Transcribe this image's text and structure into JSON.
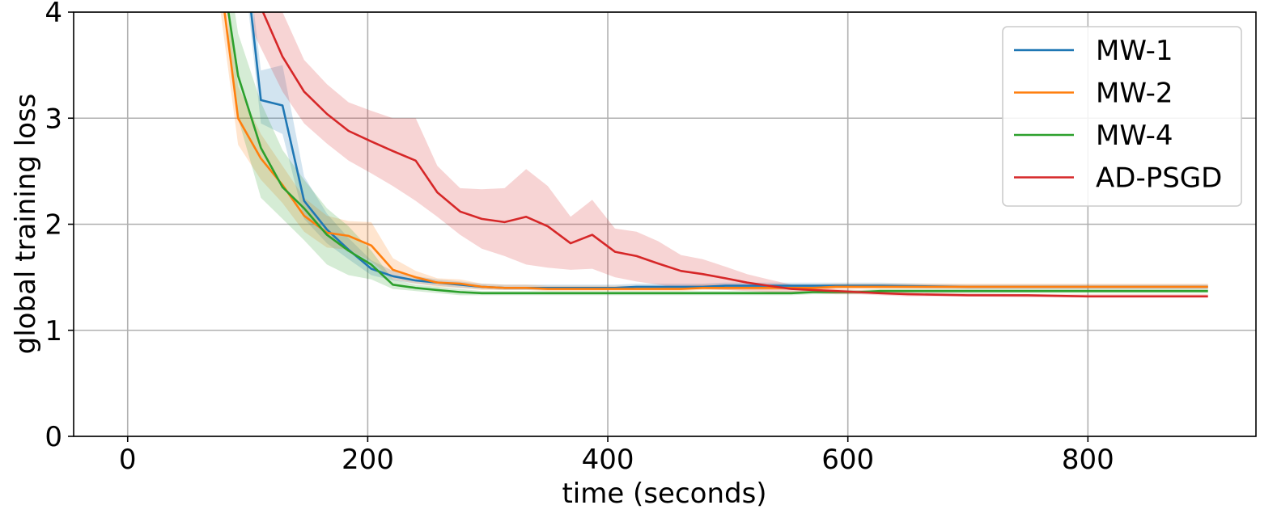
{
  "chart_data": {
    "type": "line",
    "title": "",
    "xlabel": "time (seconds)",
    "ylabel": "global training loss",
    "xlim": [
      -45,
      940
    ],
    "ylim": [
      0,
      4
    ],
    "xticks": [
      0,
      200,
      400,
      600,
      800
    ],
    "yticks": [
      0,
      1,
      2,
      3,
      4
    ],
    "grid": true,
    "legend_position": "top-right",
    "series": [
      {
        "name": "MW-1",
        "color": "#1f77b4",
        "x": [
          97,
          111,
          129,
          147,
          166,
          184,
          203,
          221,
          240,
          258,
          277,
          295,
          314,
          332,
          350,
          369,
          387,
          406,
          424,
          442,
          461,
          479,
          498,
          516,
          534,
          553,
          571,
          590,
          608,
          627,
          700,
          800,
          900
        ],
        "y": [
          4.6,
          3.17,
          3.12,
          2.22,
          1.95,
          1.76,
          1.58,
          1.51,
          1.47,
          1.45,
          1.43,
          1.41,
          1.4,
          1.4,
          1.4,
          1.4,
          1.4,
          1.4,
          1.41,
          1.41,
          1.41,
          1.41,
          1.42,
          1.42,
          1.42,
          1.42,
          1.42,
          1.42,
          1.42,
          1.42,
          1.41,
          1.41,
          1.41
        ],
        "lower": [
          4.4,
          2.95,
          2.85,
          2.05,
          1.82,
          1.67,
          1.52,
          1.47,
          1.44,
          1.42,
          1.4,
          1.39,
          1.38,
          1.38,
          1.38,
          1.38,
          1.38,
          1.38,
          1.39,
          1.39,
          1.39,
          1.39,
          1.4,
          1.4,
          1.4,
          1.4,
          1.4,
          1.4,
          1.4,
          1.4,
          1.39,
          1.39,
          1.39
        ],
        "upper": [
          4.8,
          3.45,
          3.5,
          2.45,
          2.1,
          1.87,
          1.66,
          1.56,
          1.51,
          1.48,
          1.46,
          1.44,
          1.43,
          1.43,
          1.43,
          1.43,
          1.43,
          1.43,
          1.44,
          1.44,
          1.44,
          1.44,
          1.45,
          1.45,
          1.45,
          1.45,
          1.45,
          1.45,
          1.45,
          1.45,
          1.43,
          1.43,
          1.43
        ]
      },
      {
        "name": "MW-2",
        "color": "#ff7f0e",
        "x": [
          74,
          92,
          111,
          129,
          147,
          166,
          184,
          203,
          221,
          240,
          258,
          277,
          295,
          314,
          332,
          350,
          369,
          387,
          406,
          424,
          442,
          461,
          479,
          498,
          516,
          534,
          553,
          571,
          590,
          608,
          627,
          700,
          800,
          900
        ],
        "y": [
          4.6,
          3.0,
          2.62,
          2.37,
          2.08,
          1.92,
          1.89,
          1.8,
          1.57,
          1.5,
          1.45,
          1.44,
          1.41,
          1.4,
          1.4,
          1.39,
          1.39,
          1.39,
          1.39,
          1.39,
          1.39,
          1.39,
          1.4,
          1.4,
          1.4,
          1.4,
          1.4,
          1.4,
          1.41,
          1.41,
          1.41,
          1.41,
          1.41,
          1.41
        ],
        "lower": [
          4.3,
          2.75,
          2.42,
          2.2,
          1.93,
          1.78,
          1.76,
          1.65,
          1.48,
          1.44,
          1.41,
          1.4,
          1.38,
          1.38,
          1.38,
          1.37,
          1.37,
          1.37,
          1.37,
          1.37,
          1.37,
          1.37,
          1.38,
          1.38,
          1.38,
          1.38,
          1.38,
          1.38,
          1.39,
          1.39,
          1.39,
          1.39,
          1.39,
          1.39
        ],
        "upper": [
          4.9,
          3.3,
          2.85,
          2.55,
          2.25,
          2.08,
          2.03,
          2.02,
          1.68,
          1.56,
          1.49,
          1.48,
          1.44,
          1.43,
          1.43,
          1.42,
          1.42,
          1.42,
          1.42,
          1.42,
          1.42,
          1.42,
          1.43,
          1.43,
          1.43,
          1.43,
          1.43,
          1.43,
          1.44,
          1.44,
          1.44,
          1.44,
          1.44,
          1.44
        ]
      },
      {
        "name": "MW-4",
        "color": "#2ca02c",
        "x": [
          84,
          92,
          111,
          129,
          147,
          166,
          184,
          203,
          221,
          240,
          258,
          277,
          295,
          314,
          332,
          350,
          369,
          387,
          406,
          424,
          442,
          461,
          479,
          498,
          516,
          534,
          553,
          571,
          590,
          608,
          627,
          700,
          800,
          900
        ],
        "y": [
          4.0,
          3.4,
          2.72,
          2.35,
          2.15,
          1.9,
          1.75,
          1.62,
          1.43,
          1.4,
          1.38,
          1.36,
          1.35,
          1.35,
          1.35,
          1.35,
          1.35,
          1.35,
          1.35,
          1.35,
          1.35,
          1.35,
          1.35,
          1.35,
          1.35,
          1.35,
          1.35,
          1.36,
          1.36,
          1.36,
          1.37,
          1.37,
          1.37,
          1.37
        ],
        "lower": [
          3.7,
          3.0,
          2.25,
          2.05,
          1.85,
          1.62,
          1.52,
          1.48,
          1.39,
          1.37,
          1.35,
          1.33,
          1.33,
          1.33,
          1.33,
          1.33,
          1.33,
          1.33,
          1.33,
          1.33,
          1.33,
          1.33,
          1.33,
          1.33,
          1.33,
          1.33,
          1.33,
          1.34,
          1.34,
          1.34,
          1.35,
          1.35,
          1.35,
          1.35
        ],
        "upper": [
          4.4,
          3.8,
          3.15,
          2.7,
          2.42,
          2.15,
          1.98,
          1.75,
          1.48,
          1.43,
          1.41,
          1.39,
          1.37,
          1.37,
          1.37,
          1.37,
          1.37,
          1.37,
          1.37,
          1.37,
          1.37,
          1.37,
          1.37,
          1.37,
          1.37,
          1.37,
          1.37,
          1.38,
          1.38,
          1.38,
          1.39,
          1.39,
          1.39,
          1.39
        ]
      },
      {
        "name": "AD-PSGD",
        "color": "#d62728",
        "x": [
          105,
          129,
          147,
          166,
          184,
          203,
          221,
          240,
          258,
          277,
          295,
          314,
          332,
          350,
          369,
          387,
          406,
          424,
          442,
          461,
          479,
          498,
          516,
          534,
          553,
          571,
          590,
          608,
          627,
          650,
          700,
          750,
          800,
          850,
          900
        ],
        "y": [
          4.2,
          3.58,
          3.25,
          3.04,
          2.88,
          2.78,
          2.69,
          2.6,
          2.3,
          2.12,
          2.05,
          2.02,
          2.07,
          1.98,
          1.82,
          1.9,
          1.74,
          1.7,
          1.63,
          1.56,
          1.53,
          1.49,
          1.45,
          1.42,
          1.39,
          1.38,
          1.37,
          1.36,
          1.35,
          1.34,
          1.33,
          1.33,
          1.32,
          1.32,
          1.32
        ],
        "lower": [
          3.8,
          3.25,
          2.95,
          2.76,
          2.6,
          2.48,
          2.36,
          2.22,
          2.07,
          1.9,
          1.77,
          1.7,
          1.62,
          1.59,
          1.57,
          1.58,
          1.5,
          1.46,
          1.43,
          1.4,
          1.39,
          1.38,
          1.37,
          1.36,
          1.35,
          1.35,
          1.34,
          1.34,
          1.33,
          1.32,
          1.32,
          1.31,
          1.31,
          1.31,
          1.31
        ],
        "upper": [
          4.8,
          4.0,
          3.55,
          3.32,
          3.15,
          3.07,
          3.0,
          3.0,
          2.55,
          2.34,
          2.33,
          2.34,
          2.52,
          2.36,
          2.07,
          2.23,
          1.96,
          1.93,
          1.84,
          1.71,
          1.67,
          1.6,
          1.53,
          1.48,
          1.43,
          1.41,
          1.39,
          1.38,
          1.37,
          1.36,
          1.35,
          1.34,
          1.34,
          1.34,
          1.34
        ]
      }
    ]
  }
}
